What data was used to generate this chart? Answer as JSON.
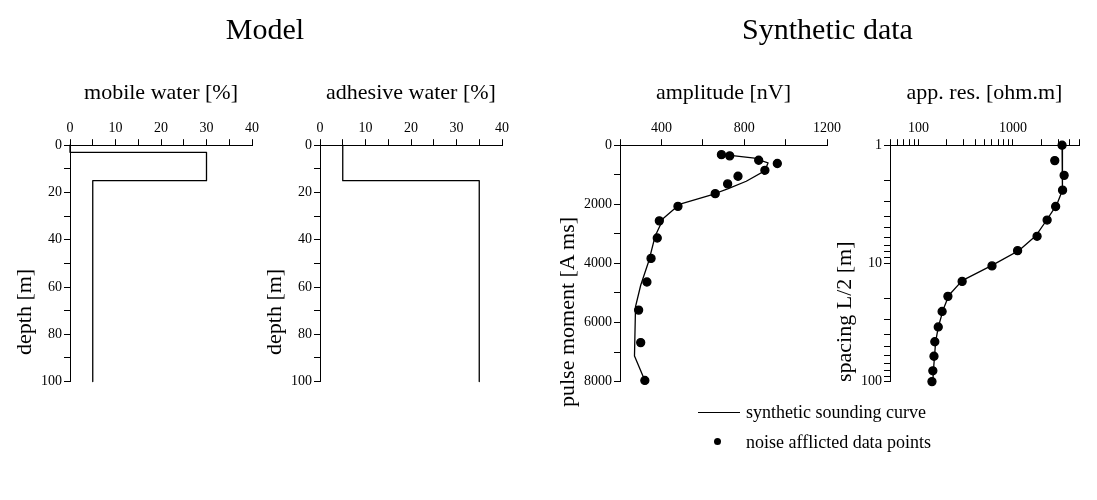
{
  "chart_data": [
    {
      "type": "line",
      "title": "Model",
      "xlabel": "mobile water [%]",
      "ylabel": "depth [m]",
      "xlim": [
        0,
        40
      ],
      "xticks": [
        0,
        {
          "value": 5,
          "label": null
        },
        10,
        {
          "value": 15,
          "label": null
        },
        20,
        {
          "value": 25,
          "label": null
        },
        30,
        {
          "value": 35,
          "label": null
        },
        40
      ],
      "ylim": [
        100,
        0
      ],
      "yticks": [
        0,
        {
          "value": 10,
          "label": null
        },
        20,
        {
          "value": 30,
          "label": null
        },
        40,
        {
          "value": 50,
          "label": null
        },
        60,
        {
          "value": 70,
          "label": null
        },
        80,
        {
          "value": 90,
          "label": null
        },
        100
      ],
      "grid": false,
      "legend": false,
      "series": [
        {
          "color": "#000000",
          "marker": "none",
          "x": [
            0,
            0,
            30,
            30,
            5,
            5
          ],
          "values": [
            0,
            3,
            3,
            15,
            15,
            100
          ]
        }
      ]
    },
    {
      "type": "line",
      "xlabel": "adhesive water [%]",
      "ylabel": "depth [m]",
      "xlim": [
        0,
        40
      ],
      "xticks": [
        0,
        {
          "value": 5,
          "label": null
        },
        10,
        {
          "value": 15,
          "label": null
        },
        20,
        {
          "value": 25,
          "label": null
        },
        30,
        {
          "value": 35,
          "label": null
        },
        40
      ],
      "ylim": [
        100,
        0
      ],
      "yticks": [
        0,
        {
          "value": 10,
          "label": null
        },
        20,
        {
          "value": 30,
          "label": null
        },
        40,
        {
          "value": 50,
          "label": null
        },
        60,
        {
          "value": 70,
          "label": null
        },
        80,
        {
          "value": 90,
          "label": null
        },
        100
      ],
      "grid": false,
      "legend": false,
      "series": [
        {
          "color": "#000000",
          "marker": "none",
          "x": [
            5,
            5,
            35,
            35
          ],
          "values": [
            0,
            15,
            15,
            100
          ]
        }
      ]
    },
    {
      "type": "line",
      "title": "Synthetic data",
      "xlabel": "amplitude [nV]",
      "ylabel": "pulse moment [A ms]",
      "xlim": [
        200,
        1200
      ],
      "xticks": [
        {
          "value": 200,
          "label": null
        },
        400,
        {
          "value": 600,
          "label": null
        },
        800,
        {
          "value": 1000,
          "label": null
        },
        1200
      ],
      "ylim": [
        8000,
        0
      ],
      "yticks": [
        0,
        {
          "value": 1000,
          "label": null
        },
        2000,
        {
          "value": 3000,
          "label": null
        },
        4000,
        {
          "value": 5000,
          "label": null
        },
        6000,
        {
          "value": 7000,
          "label": null
        },
        8000
      ],
      "grid": false,
      "legend": "bottom",
      "series": [
        {
          "name": "synthetic sounding curve",
          "color": "#000000",
          "marker": "none",
          "x": [
            680,
            850,
            915,
            900,
            810,
            720,
            650,
            490,
            410,
            370,
            340,
            300,
            275,
            270,
            320
          ],
          "values": [
            300,
            440,
            600,
            860,
            1220,
            1480,
            1660,
            1990,
            2470,
            3070,
            3900,
            4740,
            5460,
            7130,
            7960
          ]
        },
        {
          "name": "noise afflicted data points",
          "type": "scatter",
          "color": "#000000",
          "marker": "circle",
          "x": [
            690,
            730,
            870,
            960,
            900,
            770,
            720,
            660,
            480,
            390,
            380,
            350,
            330,
            290,
            300,
            320
          ],
          "values": [
            320,
            360,
            510,
            620,
            850,
            1050,
            1310,
            1640,
            2070,
            2560,
            3140,
            3830,
            4630,
            5580,
            6680,
            7960
          ]
        }
      ]
    },
    {
      "type": "line",
      "xlabel": "app. res. [ohm.m]",
      "ylabel": "spacing L/2 [m]",
      "log": "xy",
      "xlim": [
        50,
        5000
      ],
      "xticks": [
        {
          "value": 50,
          "label": null
        },
        {
          "value": 60,
          "label": null
        },
        {
          "value": 70,
          "label": null
        },
        {
          "value": 80,
          "label": null
        },
        {
          "value": 90,
          "label": null
        },
        100,
        {
          "value": 200,
          "label": null
        },
        {
          "value": 300,
          "label": null
        },
        {
          "value": 400,
          "label": null
        },
        {
          "value": 500,
          "label": null
        },
        {
          "value": 600,
          "label": null
        },
        {
          "value": 700,
          "label": null
        },
        {
          "value": 800,
          "label": null
        },
        {
          "value": 900,
          "label": null
        },
        1000,
        {
          "value": 2000,
          "label": null
        },
        {
          "value": 3000,
          "label": null
        },
        {
          "value": 4000,
          "label": null
        },
        {
          "value": 5000,
          "label": null
        }
      ],
      "ylim": [
        100,
        1
      ],
      "yticks": [
        1,
        {
          "value": 2,
          "label": null
        },
        {
          "value": 3,
          "label": null
        },
        {
          "value": 4,
          "label": null
        },
        {
          "value": 5,
          "label": null
        },
        {
          "value": 6,
          "label": null
        },
        {
          "value": 7,
          "label": null
        },
        {
          "value": 8,
          "label": null
        },
        {
          "value": 9,
          "label": null
        },
        10,
        {
          "value": 20,
          "label": null
        },
        {
          "value": 30,
          "label": null
        },
        {
          "value": 40,
          "label": null
        },
        {
          "value": 50,
          "label": null
        },
        {
          "value": 60,
          "label": null
        },
        {
          "value": 70,
          "label": null
        },
        {
          "value": 80,
          "label": null
        },
        {
          "value": 90,
          "label": null
        },
        100
      ],
      "grid": false,
      "legend": false,
      "series": [
        {
          "color": "#000000",
          "marker": "none",
          "x": [
            3310,
            3340,
            2900,
            2230,
            1760,
            1150,
            600,
            290,
            210,
            183,
            163,
            152,
            144,
            142
          ],
          "values": [
            1,
            2.4,
            3.2,
            4.4,
            5.8,
            7.8,
            10.4,
            14,
            18.6,
            24.6,
            34,
            46,
            81,
            100
          ]
        },
        {
          "type": "scatter",
          "color": "#000000",
          "marker": "circle",
          "x": [
            3310,
            2770,
            3480,
            3350,
            2830,
            2300,
            1800,
            1120,
            600,
            290,
            205,
            178,
            162,
            149,
            146,
            142,
            139
          ],
          "values": [
            1,
            1.35,
            1.8,
            2.4,
            3.3,
            4.3,
            5.9,
            7.8,
            10.5,
            14.2,
            19,
            25.5,
            34.5,
            46,
            61,
            81,
            100
          ]
        }
      ]
    }
  ]
}
